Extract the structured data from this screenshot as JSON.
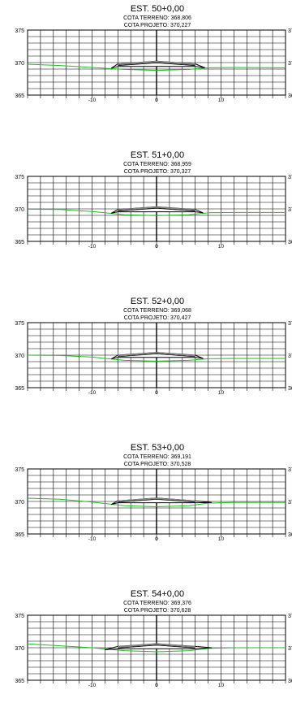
{
  "chart_data": [
    {
      "type": "cross-section",
      "title": "EST. 50+0,00",
      "terreno_label": "COTA TERRENO: 368,806",
      "projeto_label": "COTA PROJETO: 370,227",
      "y_ticks": [
        "375",
        "370",
        "365"
      ],
      "x_ticks": [
        "-10",
        "0",
        "10"
      ],
      "ylim": [
        365,
        375
      ],
      "xlim": [
        -20,
        20
      ],
      "ground_profile": [
        [
          -20,
          369.75
        ],
        [
          -15,
          369.55
        ],
        [
          -10,
          369.25
        ],
        [
          -5,
          368.95
        ],
        [
          0,
          368.8
        ],
        [
          5,
          368.95
        ],
        [
          8,
          369.2
        ],
        [
          12,
          369.25
        ],
        [
          20,
          369.2
        ]
      ],
      "road": {
        "center": 370.23,
        "edge_top": 369.8,
        "edge_bottom": 369.4,
        "half_width": 6.0,
        "toe_left": [
          -7.0,
          369.15
        ],
        "toe_right": [
          7.5,
          369.2
        ]
      },
      "colors": {
        "ground": "#22bb22",
        "road": "#000000",
        "grid": "#000000"
      }
    },
    {
      "type": "cross-section",
      "title": "EST. 51+0,00",
      "terreno_label": "COTA TERRENO: 368,959",
      "projeto_label": "COTA PROJETO: 370,327",
      "y_ticks": [
        "375",
        "370",
        "365"
      ],
      "x_ticks": [
        "-10",
        "0",
        "10"
      ],
      "ylim": [
        365,
        375
      ],
      "xlim": [
        -20,
        20
      ],
      "ground_profile": [
        [
          -20,
          369.95
        ],
        [
          -15,
          369.9
        ],
        [
          -10,
          369.6
        ],
        [
          -5,
          369.1
        ],
        [
          0,
          368.96
        ],
        [
          5,
          369.1
        ],
        [
          8,
          369.4
        ],
        [
          12,
          369.45
        ],
        [
          20,
          369.45
        ]
      ],
      "road": {
        "center": 370.33,
        "edge_top": 369.9,
        "edge_bottom": 369.55,
        "half_width": 6.0,
        "toe_left": [
          -7.0,
          369.35
        ],
        "toe_right": [
          7.2,
          369.4
        ]
      },
      "colors": {
        "ground": "#22bb22",
        "road": "#000000",
        "grid": "#000000"
      }
    },
    {
      "type": "cross-section",
      "title": "EST. 52+0,00",
      "terreno_label": "COTA TERRENO: 369,068",
      "projeto_label": "COTA PROJETO: 370,427",
      "y_ticks": [
        "375",
        "370",
        "365"
      ],
      "x_ticks": [
        "-10",
        "0",
        "10"
      ],
      "ylim": [
        365,
        375
      ],
      "xlim": [
        -20,
        20
      ],
      "ground_profile": [
        [
          -20,
          370.0
        ],
        [
          -15,
          369.95
        ],
        [
          -10,
          369.7
        ],
        [
          -5,
          369.2
        ],
        [
          0,
          369.07
        ],
        [
          5,
          369.2
        ],
        [
          8,
          369.45
        ],
        [
          12,
          369.5
        ],
        [
          20,
          369.5
        ]
      ],
      "road": {
        "center": 370.43,
        "edge_top": 370.0,
        "edge_bottom": 369.65,
        "half_width": 6.0,
        "toe_left": [
          -7.0,
          369.45
        ],
        "toe_right": [
          7.2,
          369.5
        ]
      },
      "colors": {
        "ground": "#22bb22",
        "road": "#000000",
        "grid": "#000000"
      }
    },
    {
      "type": "cross-section",
      "title": "EST. 53+0,00",
      "terreno_label": "COTA TERRENO: 369,191",
      "projeto_label": "COTA PROJETO: 370,528",
      "y_ticks": [
        "375",
        "370",
        "365"
      ],
      "x_ticks": [
        "-10",
        "0",
        "10"
      ],
      "ylim": [
        365,
        375
      ],
      "xlim": [
        -20,
        20
      ],
      "ground_profile": [
        [
          -20,
          370.5
        ],
        [
          -15,
          370.35
        ],
        [
          -10,
          369.9
        ],
        [
          -5,
          369.35
        ],
        [
          0,
          369.19
        ],
        [
          5,
          369.35
        ],
        [
          8,
          369.75
        ],
        [
          12,
          369.85
        ],
        [
          20,
          369.85
        ]
      ],
      "road": {
        "center": 370.53,
        "edge_top": 370.1,
        "edge_bottom": 369.8,
        "half_width": 6.0,
        "toe_left": [
          -7.0,
          369.55
        ],
        "toe_right": [
          8.5,
          369.85
        ]
      },
      "colors": {
        "ground": "#22bb22",
        "road": "#000000",
        "grid": "#000000"
      }
    },
    {
      "type": "cross-section",
      "title": "EST. 54+0,00",
      "terreno_label": "COTA TERRENO: 369,376",
      "projeto_label": "COTA PROJETO: 370,628",
      "y_ticks": [
        "375",
        "370",
        "365"
      ],
      "x_ticks": [
        "-10",
        "0",
        "10"
      ],
      "ylim": [
        365,
        375
      ],
      "xlim": [
        -20,
        20
      ],
      "ground_profile": [
        [
          -20,
          370.6
        ],
        [
          -15,
          370.3
        ],
        [
          -10,
          370.0
        ],
        [
          -5,
          369.55
        ],
        [
          0,
          369.38
        ],
        [
          5,
          369.55
        ],
        [
          8,
          369.9
        ],
        [
          12,
          370.0
        ],
        [
          20,
          370.0
        ]
      ],
      "road": {
        "center": 370.63,
        "edge_top": 370.2,
        "edge_bottom": 369.85,
        "half_width": 6.0,
        "toe_left": [
          -8.0,
          369.7
        ],
        "toe_right": [
          8.5,
          370.0
        ]
      },
      "colors": {
        "ground": "#22bb22",
        "road": "#000000",
        "grid": "#000000"
      }
    }
  ]
}
